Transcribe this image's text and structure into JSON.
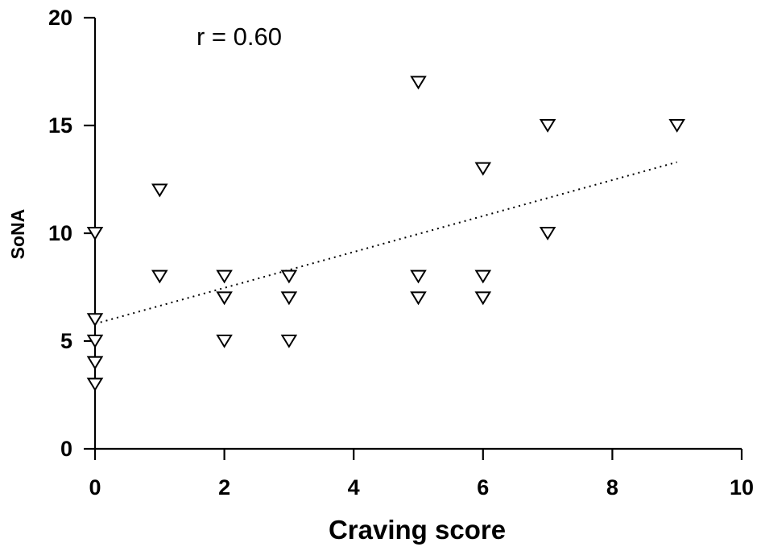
{
  "chart_data": {
    "type": "scatter",
    "xlabel": "Craving score",
    "ylabel": "SoNA",
    "xlim": [
      0,
      10
    ],
    "ylim": [
      0,
      20
    ],
    "xticks": [
      "0",
      "2",
      "4",
      "6",
      "8",
      "10"
    ],
    "yticks": [
      "0",
      "5",
      "10",
      "15",
      "20"
    ],
    "annotation": "r = 0.60",
    "grid": false,
    "marker": "open-down-triangle",
    "trendline": {
      "style": "dotted",
      "x": [
        0,
        9
      ],
      "y": [
        5.8,
        13.3
      ]
    },
    "points": [
      {
        "x": 0,
        "y": 10
      },
      {
        "x": 0,
        "y": 6
      },
      {
        "x": 0,
        "y": 5
      },
      {
        "x": 0,
        "y": 4
      },
      {
        "x": 0,
        "y": 3
      },
      {
        "x": 1,
        "y": 12
      },
      {
        "x": 1,
        "y": 8
      },
      {
        "x": 2,
        "y": 8
      },
      {
        "x": 2,
        "y": 7
      },
      {
        "x": 2,
        "y": 5
      },
      {
        "x": 3,
        "y": 8
      },
      {
        "x": 3,
        "y": 7
      },
      {
        "x": 3,
        "y": 5
      },
      {
        "x": 5,
        "y": 17
      },
      {
        "x": 5,
        "y": 8
      },
      {
        "x": 5,
        "y": 7
      },
      {
        "x": 6,
        "y": 13
      },
      {
        "x": 6,
        "y": 8
      },
      {
        "x": 6,
        "y": 7
      },
      {
        "x": 7,
        "y": 15
      },
      {
        "x": 7,
        "y": 10
      },
      {
        "x": 9,
        "y": 15
      }
    ]
  }
}
